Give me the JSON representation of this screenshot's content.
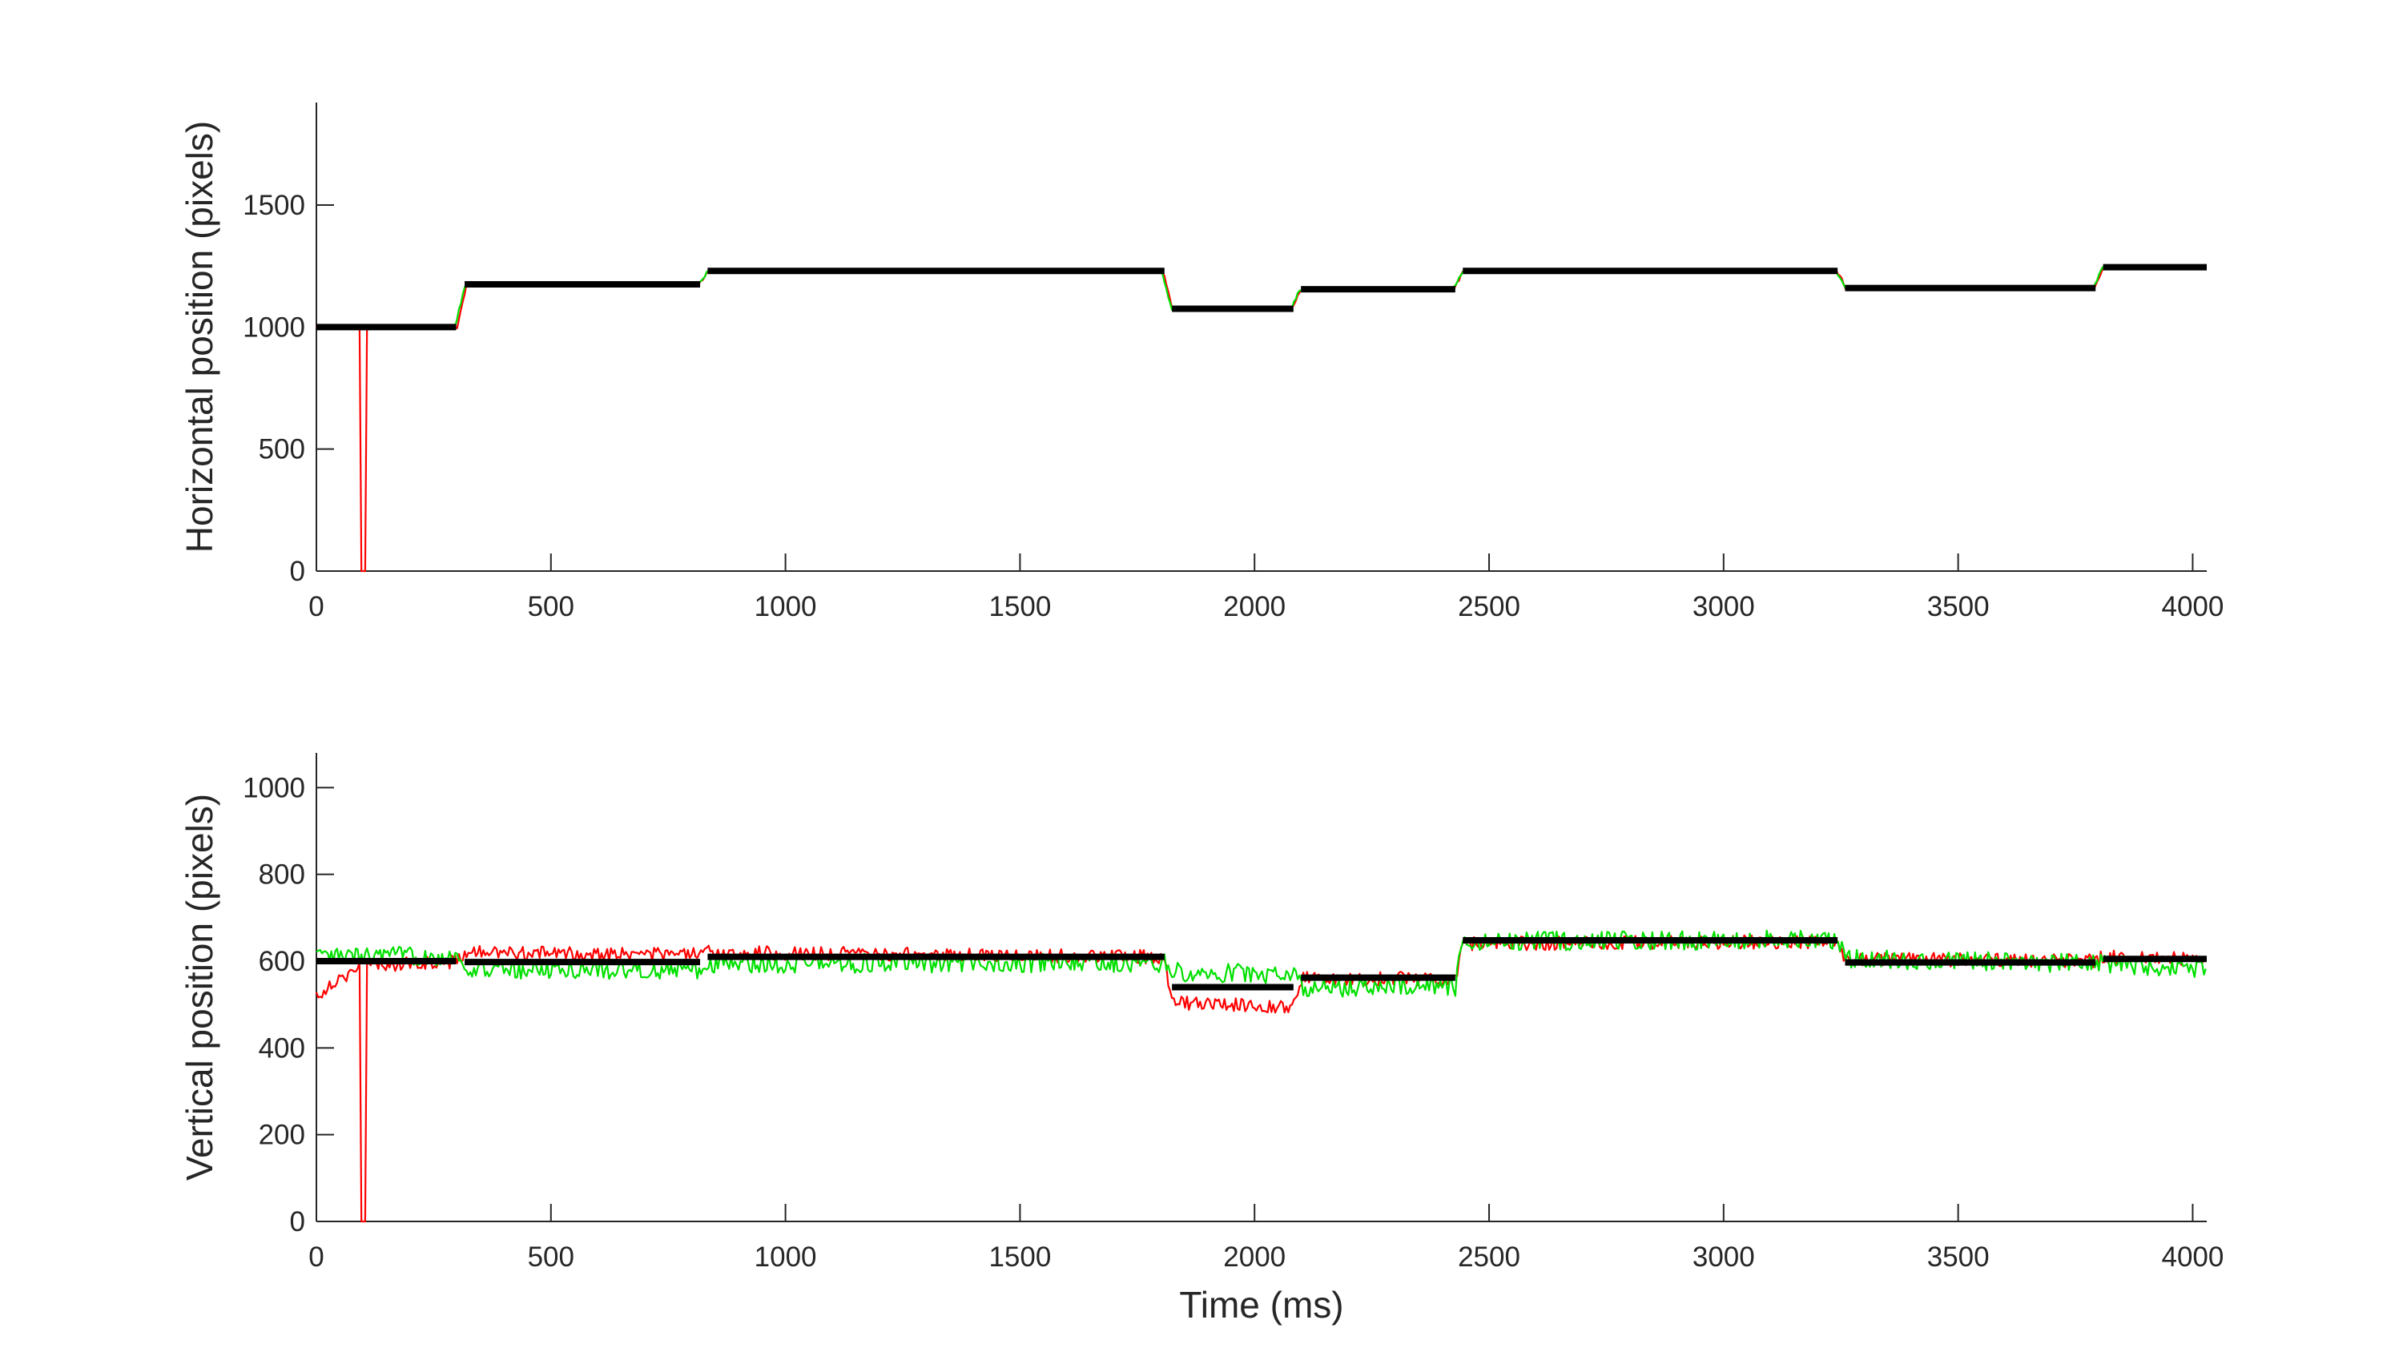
{
  "chart_data": [
    {
      "type": "line",
      "xlabel": "",
      "ylabel": "Horizontal position (pixels)",
      "xlim": [
        0,
        4030
      ],
      "ylim": [
        0,
        1920
      ],
      "xticks": [
        0,
        500,
        1000,
        1500,
        2000,
        2500,
        3000,
        3500,
        4000
      ],
      "yticks": [
        0,
        500,
        1000,
        1500
      ],
      "grid": false,
      "box": false,
      "legend": "none",
      "series": [
        {
          "color": "#ff0000",
          "noise_amplitude": 6,
          "dropout": {
            "t": [
              95,
              105
            ],
            "value": 0
          },
          "t": [
            0,
            300,
            315,
            320,
            815,
            830,
            835,
            1805,
            1820,
            1825,
            2080,
            2095,
            2100,
            2425,
            2440,
            2445,
            3240,
            3255,
            3260,
            3790,
            3805,
            3810,
            4030
          ],
          "y": [
            1000,
            1000,
            1130,
            1175,
            1175,
            1210,
            1230,
            1230,
            1110,
            1075,
            1075,
            1140,
            1155,
            1155,
            1210,
            1230,
            1230,
            1185,
            1160,
            1160,
            1225,
            1245,
            1245
          ]
        },
        {
          "color": "#00e000",
          "noise_amplitude": 6,
          "t": [
            0,
            295,
            312,
            318,
            812,
            828,
            834,
            1802,
            1818,
            1824,
            2078,
            2093,
            2099,
            2422,
            2438,
            2444,
            3238,
            3253,
            3259,
            3788,
            3803,
            3809,
            4030
          ],
          "y": [
            1000,
            1000,
            1130,
            1175,
            1175,
            1210,
            1230,
            1230,
            1110,
            1075,
            1075,
            1140,
            1155,
            1155,
            1210,
            1230,
            1230,
            1185,
            1160,
            1160,
            1225,
            1245,
            1245
          ]
        }
      ],
      "fixations": [
        {
          "start": 0,
          "end": 298,
          "value": 1000
        },
        {
          "start": 316,
          "end": 818,
          "value": 1175
        },
        {
          "start": 834,
          "end": 1808,
          "value": 1230
        },
        {
          "start": 1824,
          "end": 2083,
          "value": 1075
        },
        {
          "start": 2099,
          "end": 2428,
          "value": 1155
        },
        {
          "start": 2444,
          "end": 3243,
          "value": 1230
        },
        {
          "start": 3259,
          "end": 3793,
          "value": 1160
        },
        {
          "start": 3809,
          "end": 4030,
          "value": 1245
        }
      ]
    },
    {
      "type": "line",
      "xlabel": "Time (ms)",
      "ylabel": "Vertical position (pixels)",
      "xlim": [
        0,
        4030
      ],
      "ylim": [
        0,
        1080
      ],
      "xticks": [
        0,
        500,
        1000,
        1500,
        2000,
        2500,
        3000,
        3500,
        4000
      ],
      "yticks": [
        0,
        200,
        400,
        600,
        800,
        1000
      ],
      "grid": false,
      "box": false,
      "legend": "none",
      "series": [
        {
          "color": "#ff0000",
          "noise_amplitude": 16,
          "dropout": {
            "t": [
              95,
              105
            ],
            "value": 0
          },
          "t": [
            0,
            40,
            100,
            298,
            316,
            818,
            834,
            1808,
            1824,
            2083,
            2099,
            2428,
            2444,
            3243,
            3259,
            3793,
            3809,
            4030
          ],
          "y": [
            520,
            555,
            590,
            598,
            620,
            615,
            620,
            610,
            505,
            495,
            560,
            560,
            640,
            645,
            605,
            600,
            610,
            605
          ]
        },
        {
          "color": "#00e000",
          "noise_amplitude": 22,
          "t": [
            0,
            298,
            316,
            818,
            834,
            1808,
            1824,
            2083,
            2099,
            2428,
            2444,
            3243,
            3259,
            3793,
            3809,
            4030
          ],
          "y": [
            610,
            612,
            580,
            580,
            595,
            595,
            575,
            570,
            540,
            540,
            645,
            650,
            605,
            595,
            595,
            580
          ]
        }
      ],
      "fixations": [
        {
          "start": 0,
          "end": 298,
          "value": 600
        },
        {
          "start": 316,
          "end": 818,
          "value": 598
        },
        {
          "start": 834,
          "end": 1808,
          "value": 610
        },
        {
          "start": 1824,
          "end": 2083,
          "value": 540
        },
        {
          "start": 2099,
          "end": 2428,
          "value": 562
        },
        {
          "start": 2444,
          "end": 3243,
          "value": 648
        },
        {
          "start": 3259,
          "end": 3793,
          "value": 597
        },
        {
          "start": 3809,
          "end": 4030,
          "value": 605
        }
      ]
    }
  ]
}
